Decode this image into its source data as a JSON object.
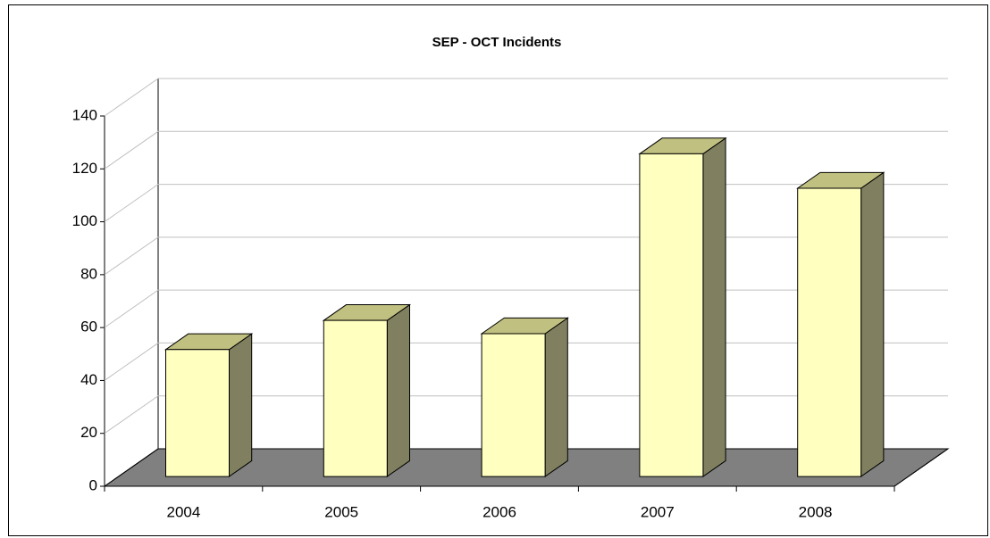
{
  "chart_data": {
    "type": "bar3d",
    "title": "SEP - OCT Incidents",
    "categories": [
      "2004",
      "2005",
      "2006",
      "2007",
      "2008"
    ],
    "values": [
      48,
      59,
      54,
      122,
      109
    ],
    "color": "#ffffc0",
    "ylim": [
      0,
      140
    ],
    "yticks": [
      0,
      20,
      40,
      60,
      80,
      100,
      120,
      140
    ],
    "grid": true
  }
}
